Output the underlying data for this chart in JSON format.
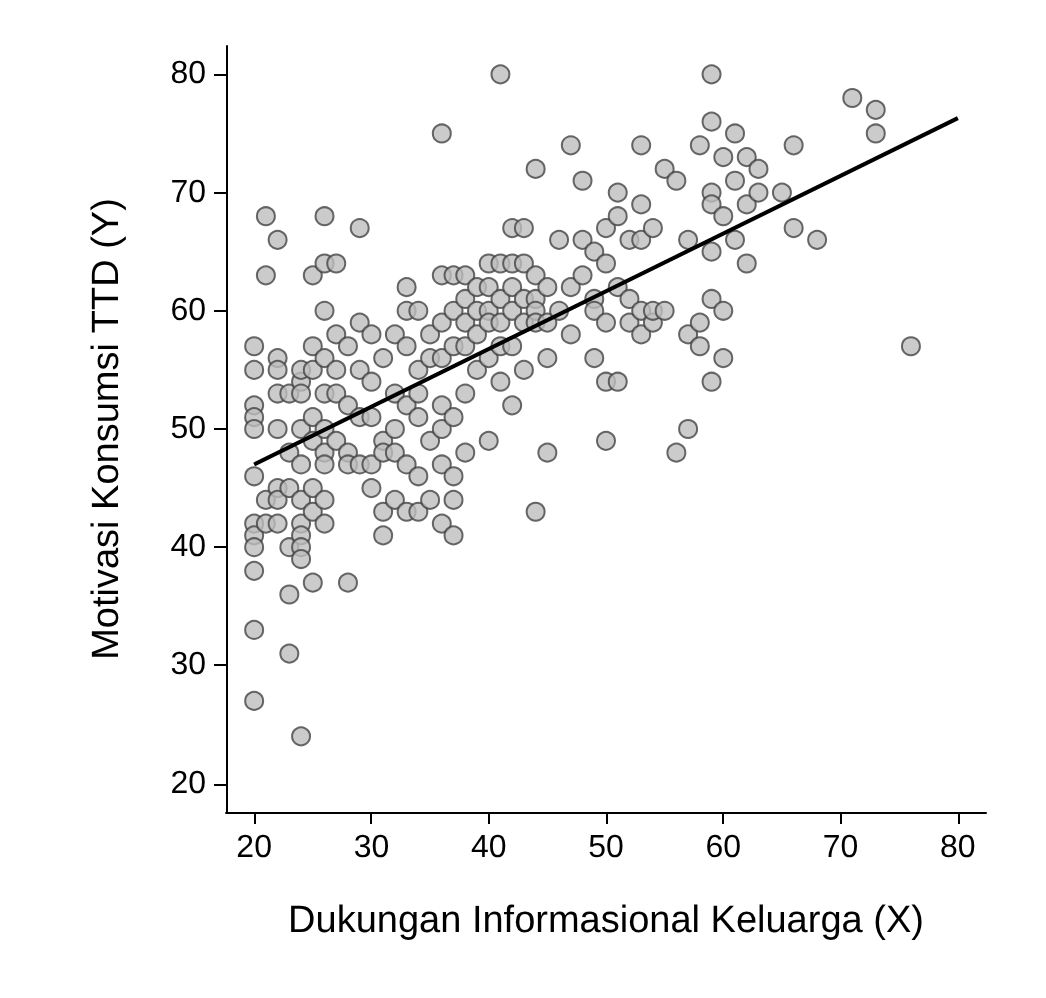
{
  "chart_data": {
    "type": "scatter",
    "xlabel": "Dukungan Informasional Keluarga (X)",
    "ylabel": "Motivasi Konsumsi TTD (Y)",
    "xlim": [
      17.6,
      82.4
    ],
    "ylim": [
      17.6,
      82.4
    ],
    "xticks": [
      20,
      30,
      40,
      50,
      60,
      70,
      80
    ],
    "yticks": [
      20,
      30,
      40,
      50,
      60,
      70,
      80
    ],
    "grid": false,
    "marker": "circle",
    "series": [
      {
        "color": "#bebebe",
        "x": [
          20,
          20,
          20,
          20,
          20,
          20,
          20,
          20,
          20,
          20,
          20,
          20,
          21,
          21,
          21,
          21,
          22,
          22,
          22,
          22,
          22,
          22,
          22,
          22,
          23,
          23,
          23,
          23,
          23,
          23,
          24,
          24,
          24,
          24,
          24,
          24,
          24,
          24,
          24,
          24,
          24,
          25,
          25,
          25,
          25,
          25,
          25,
          25,
          25,
          26,
          26,
          26,
          26,
          26,
          26,
          26,
          26,
          26,
          26,
          27,
          27,
          27,
          27,
          27,
          28,
          28,
          28,
          28,
          28,
          29,
          29,
          29,
          29,
          29,
          30,
          30,
          30,
          30,
          30,
          31,
          31,
          31,
          31,
          31,
          32,
          32,
          32,
          32,
          32,
          33,
          33,
          33,
          33,
          33,
          33,
          34,
          34,
          34,
          34,
          34,
          34,
          35,
          35,
          35,
          35,
          36,
          36,
          36,
          36,
          36,
          36,
          36,
          36,
          37,
          37,
          37,
          37,
          37,
          37,
          37,
          38,
          38,
          38,
          38,
          38,
          38,
          39,
          39,
          39,
          39,
          40,
          40,
          40,
          40,
          40,
          40,
          41,
          41,
          41,
          41,
          41,
          41,
          42,
          42,
          42,
          42,
          42,
          42,
          43,
          43,
          43,
          43,
          43,
          44,
          44,
          44,
          44,
          44,
          44,
          45,
          45,
          45,
          45,
          46,
          46,
          47,
          47,
          47,
          48,
          48,
          48,
          49,
          49,
          49,
          49,
          50,
          50,
          50,
          50,
          50,
          51,
          51,
          51,
          51,
          52,
          52,
          52,
          53,
          53,
          53,
          53,
          53,
          54,
          54,
          54,
          55,
          55,
          56,
          56,
          57,
          57,
          57,
          58,
          58,
          58,
          59,
          59,
          59,
          59,
          59,
          59,
          59,
          60,
          60,
          60,
          60,
          61,
          61,
          61,
          62,
          62,
          62,
          63,
          63,
          65,
          66,
          66,
          68,
          71,
          73,
          73,
          76
        ],
        "values": [
          57,
          55,
          52,
          51,
          50,
          46,
          42,
          41,
          40,
          38,
          33,
          27,
          68,
          63,
          44,
          42,
          66,
          56,
          55,
          53,
          50,
          45,
          44,
          42,
          53,
          45,
          40,
          36,
          31,
          48,
          24,
          42,
          41,
          40,
          39,
          44,
          54,
          50,
          55,
          53,
          47,
          63,
          57,
          55,
          51,
          49,
          45,
          43,
          37,
          68,
          64,
          60,
          56,
          53,
          50,
          48,
          42,
          44,
          47,
          64,
          58,
          55,
          53,
          49,
          57,
          52,
          48,
          47,
          37,
          67,
          59,
          55,
          47,
          51,
          58,
          54,
          51,
          47,
          45,
          56,
          49,
          41,
          43,
          48,
          58,
          53,
          50,
          48,
          44,
          62,
          60,
          57,
          52,
          47,
          43,
          60,
          55,
          51,
          46,
          43,
          53,
          58,
          49,
          44,
          56,
          75,
          63,
          59,
          56,
          52,
          50,
          47,
          42,
          63,
          60,
          57,
          51,
          46,
          44,
          41,
          63,
          61,
          59,
          57,
          53,
          48,
          62,
          60,
          58,
          55,
          64,
          62,
          60,
          59,
          56,
          49,
          80,
          64,
          61,
          59,
          57,
          54,
          67,
          64,
          62,
          60,
          57,
          52,
          67,
          64,
          61,
          59,
          55,
          72,
          63,
          61,
          60,
          59,
          43,
          62,
          59,
          56,
          48,
          66,
          60,
          74,
          62,
          58,
          63,
          66,
          71,
          65,
          61,
          60,
          56,
          67,
          64,
          59,
          54,
          49,
          70,
          68,
          62,
          54,
          66,
          61,
          59,
          74,
          69,
          66,
          60,
          58,
          67,
          59,
          60,
          72,
          60,
          71,
          48,
          66,
          50,
          58,
          74,
          59,
          57,
          80,
          76,
          70,
          69,
          65,
          61,
          54,
          73,
          68,
          60,
          56,
          75,
          71,
          66,
          73,
          69,
          64,
          72,
          70,
          70,
          74,
          67,
          66,
          78,
          77,
          75,
          57
        ]
      },
      {
        "type": "line",
        "marker": "none",
        "color": "#000000",
        "x": [
          20,
          80
        ],
        "values": [
          47,
          76.3
        ]
      }
    ]
  }
}
